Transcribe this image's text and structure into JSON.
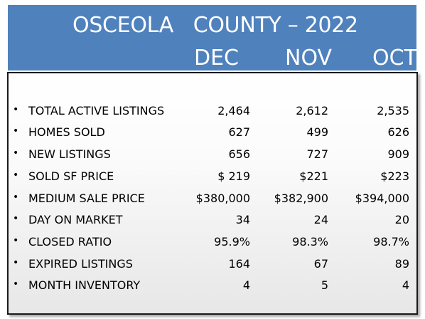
{
  "header": {
    "title": "OSCEOLA   COUNTY – 2022",
    "months": [
      "DEC",
      "NOV",
      "OCT"
    ]
  },
  "rows": [
    {
      "label": "TOTAL ACTIVE  LISTINGS",
      "dec": "2,464",
      "nov": "2,612",
      "oct": "2,535"
    },
    {
      "label": "HOMES SOLD",
      "dec": "627",
      "nov": "499",
      "oct": "626"
    },
    {
      "label": "NEW  LISTINGS",
      "dec": "656",
      "nov": "727",
      "oct": "909"
    },
    {
      "label": "SOLD SF PRICE",
      "dec": "$ 219",
      "nov": "$221",
      "oct": "$223"
    },
    {
      "label": "MEDIUM SALE PRICE",
      "dec": "$380,000",
      "nov": "$382,900",
      "oct": "$394,000"
    },
    {
      "label": "DAY ON MARKET",
      "dec": "34",
      "nov": "24",
      "oct": "20"
    },
    {
      "label": "CLOSED RATIO",
      "dec": "95.9%",
      "nov": "98.3%",
      "oct": "98.7%"
    },
    {
      "label": "EXPIRED LISTINGS",
      "dec": "164",
      "nov": "67",
      "oct": "89"
    },
    {
      "label": "MONTH INVENTORY",
      "dec": "4",
      "nov": "5",
      "oct": "4"
    }
  ],
  "colors": {
    "header_bg": "#4f81bd",
    "header_text": "#ffffff",
    "text": "#000000"
  }
}
